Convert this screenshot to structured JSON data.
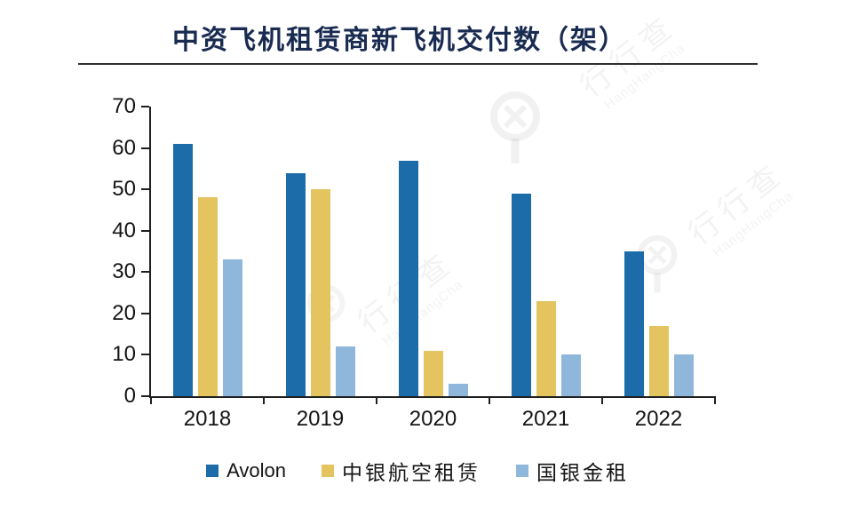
{
  "chart_data": {
    "type": "bar",
    "title": "中资飞机租赁商新飞机交付数（架）",
    "categories": [
      "2018",
      "2019",
      "2020",
      "2021",
      "2022"
    ],
    "series": [
      {
        "name": "Avolon",
        "color": "#1b6ca8",
        "values": [
          61,
          54,
          57,
          49,
          35
        ]
      },
      {
        "name": "中银航空租赁",
        "color": "#e3c45f",
        "values": [
          48,
          50,
          11,
          23,
          17
        ]
      },
      {
        "name": "国银金租",
        "color": "#8fb7db",
        "values": [
          33,
          12,
          3,
          10,
          10
        ]
      }
    ],
    "xlabel": "",
    "ylabel": "",
    "ylim": [
      0,
      70
    ],
    "yticks": [
      0,
      10,
      20,
      30,
      40,
      50,
      60,
      70
    ],
    "grid": false,
    "legend_position": "bottom",
    "axis_color": "#1f1f1f",
    "title_color": "#1a2b52"
  },
  "watermark": {
    "text_cn": "行行查",
    "text_en": "HangHangCha"
  }
}
